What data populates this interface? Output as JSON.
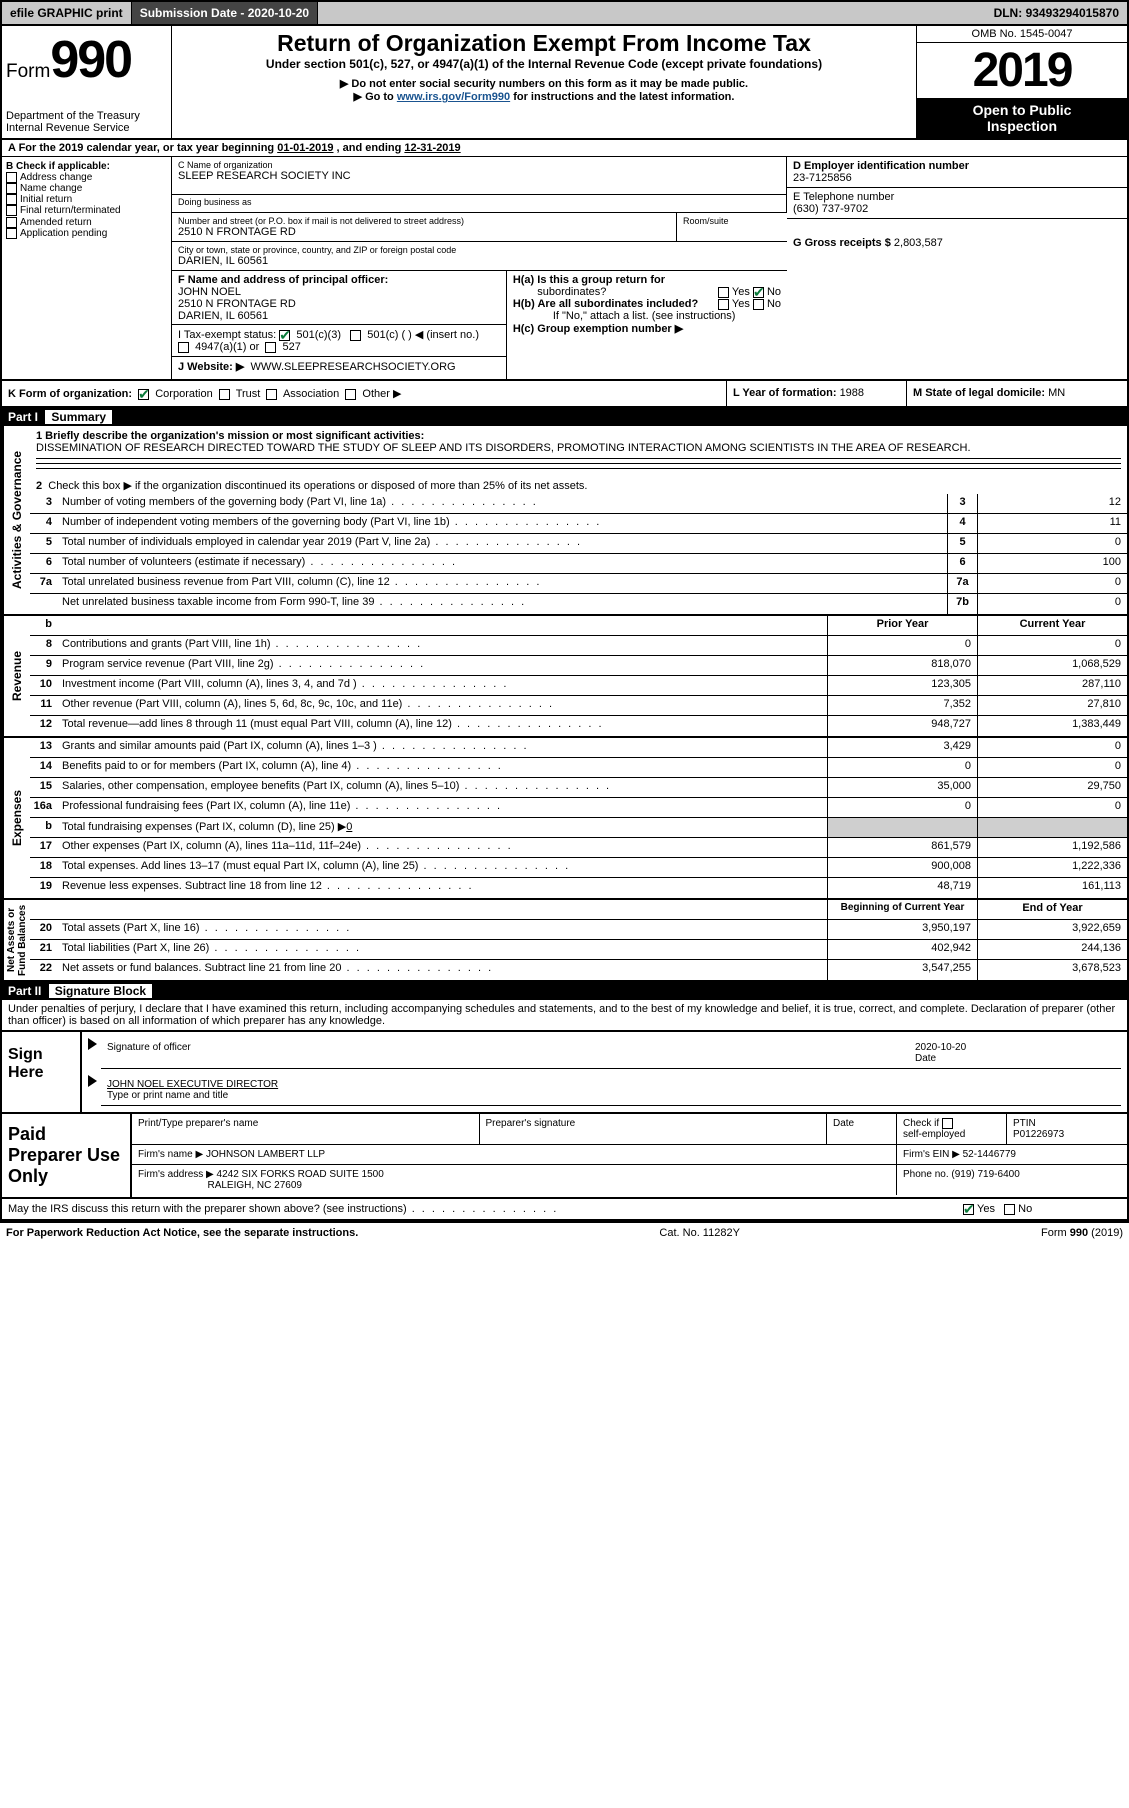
{
  "topbar": {
    "efile": "efile GRAPHIC print",
    "submission_label": "Submission Date - ",
    "submission_date": "2020-10-20",
    "dln_label": "DLN: ",
    "dln": "93493294015870"
  },
  "header": {
    "form_word": "Form",
    "form_num": "990",
    "dept": "Department of the Treasury\nInternal Revenue Service",
    "title": "Return of Organization Exempt From Income Tax",
    "subtitle": "Under section 501(c), 527, or 4947(a)(1) of the Internal Revenue Code (except private foundations)",
    "note1": "▶ Do not enter social security numbers on this form as it may be made public.",
    "note2_pre": "▶ Go to ",
    "note2_link": "www.irs.gov/Form990",
    "note2_post": " for instructions and the latest information.",
    "omb": "OMB No. 1545-0047",
    "year": "2019",
    "pub": "Open to Public\nInspection"
  },
  "period": {
    "text_a": "A For the 2019 calendar year, or tax year beginning ",
    "begin": "01-01-2019",
    "text_b": " , and ending ",
    "end": "12-31-2019"
  },
  "colB": {
    "header": "B Check if applicable:",
    "items": [
      "Address change",
      "Name change",
      "Initial return",
      "Final return/terminated",
      "Amended return",
      "Application pending"
    ]
  },
  "c": {
    "label_name": "C Name of organization",
    "name": "SLEEP RESEARCH SOCIETY INC",
    "label_dba": "Doing business as",
    "dba": "",
    "label_addr": "Number and street (or P.O. box if mail is not delivered to street address)",
    "label_room": "Room/suite",
    "addr": "2510 N FRONTAGE RD",
    "label_city": "City or town, state or province, country, and ZIP or foreign postal code",
    "city": "DARIEN, IL  60561"
  },
  "d": {
    "label": "D Employer identification number",
    "value": "23-7125856"
  },
  "e": {
    "label": "E Telephone number",
    "value": "(630) 737-9702"
  },
  "g": {
    "label": "G Gross receipts $ ",
    "value": "2,803,587"
  },
  "f": {
    "label": "F  Name and address of principal officer:",
    "name": "JOHN NOEL",
    "addr1": "2510 N FRONTAGE RD",
    "addr2": "DARIEN, IL  60561"
  },
  "h": {
    "a": "H(a)  Is this a group return for",
    "a2": "subordinates?",
    "b": "H(b)  Are all subordinates included?",
    "bnote": "If \"No,\" attach a list. (see instructions)",
    "c": "H(c)  Group exemption number ▶",
    "yes": "Yes",
    "no": "No"
  },
  "i": {
    "label": "I  Tax-exempt status:",
    "c3": "501(c)(3)",
    "c": "501(c) (  ) ◀ (insert no.)",
    "a1": "4947(a)(1) or",
    "s527": "527"
  },
  "j": {
    "label": "J    Website: ▶",
    "value": "WWW.SLEEPRESEARCHSOCIETY.ORG"
  },
  "k": {
    "label": "K Form of organization:",
    "corp": "Corporation",
    "trust": "Trust",
    "assoc": "Association",
    "other": "Other ▶"
  },
  "l": {
    "label": "L Year of formation: ",
    "value": "1988"
  },
  "m": {
    "label": "M State of legal domicile: ",
    "value": "MN"
  },
  "part1": {
    "header": "Part I",
    "title": "Summary",
    "q1": "1  Briefly describe the organization's mission or most significant activities:",
    "mission": "DISSEMINATION OF RESEARCH DIRECTED TOWARD THE STUDY OF SLEEP AND ITS DISORDERS, PROMOTING INTERACTION AMONG SCIENTISTS IN THE AREA OF RESEARCH.",
    "q2": "Check this box ▶      if the organization discontinued its operations or disposed of more than 25% of its net assets."
  },
  "side_labels": {
    "ag": "Activities & Governance",
    "rev": "Revenue",
    "exp": "Expenses",
    "net": "Net Assets or\nFund Balances"
  },
  "lines_ag": [
    {
      "no": "3",
      "desc": "Number of voting members of the governing body (Part VI, line 1a)",
      "box": "3",
      "val": "12"
    },
    {
      "no": "4",
      "desc": "Number of independent voting members of the governing body (Part VI, line 1b)",
      "box": "4",
      "val": "11"
    },
    {
      "no": "5",
      "desc": "Total number of individuals employed in calendar year 2019 (Part V, line 2a)",
      "box": "5",
      "val": "0"
    },
    {
      "no": "6",
      "desc": "Total number of volunteers (estimate if necessary)",
      "box": "6",
      "val": "100"
    },
    {
      "no": "7a",
      "desc": "Total unrelated business revenue from Part VIII, column (C), line 12",
      "box": "7a",
      "val": "0"
    },
    {
      "no": "",
      "desc": "Net unrelated business taxable income from Form 990-T, line 39",
      "box": "7b",
      "val": "0"
    }
  ],
  "colhdr": {
    "b": "b",
    "prior": "Prior Year",
    "current": "Current Year"
  },
  "lines_rev": [
    {
      "no": "8",
      "desc": "Contributions and grants (Part VIII, line 1h)",
      "prior": "0",
      "cur": "0"
    },
    {
      "no": "9",
      "desc": "Program service revenue (Part VIII, line 2g)",
      "prior": "818,070",
      "cur": "1,068,529"
    },
    {
      "no": "10",
      "desc": "Investment income (Part VIII, column (A), lines 3, 4, and 7d )",
      "prior": "123,305",
      "cur": "287,110"
    },
    {
      "no": "11",
      "desc": "Other revenue (Part VIII, column (A), lines 5, 6d, 8c, 9c, 10c, and 11e)",
      "prior": "7,352",
      "cur": "27,810"
    },
    {
      "no": "12",
      "desc": "Total revenue—add lines 8 through 11 (must equal Part VIII, column (A), line 12)",
      "prior": "948,727",
      "cur": "1,383,449"
    }
  ],
  "lines_exp": [
    {
      "no": "13",
      "desc": "Grants and similar amounts paid (Part IX, column (A), lines 1–3 )",
      "prior": "3,429",
      "cur": "0"
    },
    {
      "no": "14",
      "desc": "Benefits paid to or for members (Part IX, column (A), line 4)",
      "prior": "0",
      "cur": "0"
    },
    {
      "no": "15",
      "desc": "Salaries, other compensation, employee benefits (Part IX, column (A), lines 5–10)",
      "prior": "35,000",
      "cur": "29,750"
    },
    {
      "no": "16a",
      "desc": "Professional fundraising fees (Part IX, column (A), line 11e)",
      "prior": "0",
      "cur": "0"
    }
  ],
  "line16b": {
    "no": "b",
    "desc": "Total fundraising expenses (Part IX, column (D), line 25) ▶",
    "val": "0"
  },
  "lines_exp2": [
    {
      "no": "17",
      "desc": "Other expenses (Part IX, column (A), lines 11a–11d, 11f–24e)",
      "prior": "861,579",
      "cur": "1,192,586"
    },
    {
      "no": "18",
      "desc": "Total expenses. Add lines 13–17 (must equal Part IX, column (A), line 25)",
      "prior": "900,008",
      "cur": "1,222,336"
    },
    {
      "no": "19",
      "desc": "Revenue less expenses. Subtract line 18 from line 12",
      "prior": "48,719",
      "cur": "161,113"
    }
  ],
  "colhdr2": {
    "begin": "Beginning of Current Year",
    "end": "End of Year"
  },
  "lines_net": [
    {
      "no": "20",
      "desc": "Total assets (Part X, line 16)",
      "prior": "3,950,197",
      "cur": "3,922,659"
    },
    {
      "no": "21",
      "desc": "Total liabilities (Part X, line 26)",
      "prior": "402,942",
      "cur": "244,136"
    },
    {
      "no": "22",
      "desc": "Net assets or fund balances. Subtract line 21 from line 20",
      "prior": "3,547,255",
      "cur": "3,678,523"
    }
  ],
  "part2": {
    "header": "Part II",
    "title": "Signature Block",
    "declaration": "Under penalties of perjury, I declare that I have examined this return, including accompanying schedules and statements, and to the best of my knowledge and belief, it is true, correct, and complete. Declaration of preparer (other than officer) is based on all information of which preparer has any knowledge."
  },
  "sign": {
    "label": "Sign Here",
    "sig_of_officer": "Signature of officer",
    "date": "Date",
    "date_val": "2020-10-20",
    "name": "JOHN NOEL  EXECUTIVE DIRECTOR",
    "name_label": "Type or print name and title"
  },
  "paid": {
    "label": "Paid Preparer Use Only",
    "h1": "Print/Type preparer's name",
    "h2": "Preparer's signature",
    "h3": "Date",
    "h4_pre": "Check       if",
    "h4_post": "self-employed",
    "h5": "PTIN",
    "ptin": "P01226973",
    "firm_label": "Firm's name    ▶",
    "firm": "JOHNSON LAMBERT LLP",
    "ein_label": "Firm's EIN ▶",
    "ein": "52-1446779",
    "addr_label": "Firm's address ▶",
    "addr1": "4242 SIX FORKS ROAD SUITE 1500",
    "addr2": "RALEIGH, NC  27609",
    "phone_label": "Phone no. ",
    "phone": "(919) 719-6400"
  },
  "discuss": {
    "text": "May the IRS discuss this return with the preparer shown above? (see instructions)",
    "yes": "Yes",
    "no": "No"
  },
  "footer": {
    "left": "For Paperwork Reduction Act Notice, see the separate instructions.",
    "center": "Cat. No. 11282Y",
    "right": "Form 990 (2019)"
  }
}
